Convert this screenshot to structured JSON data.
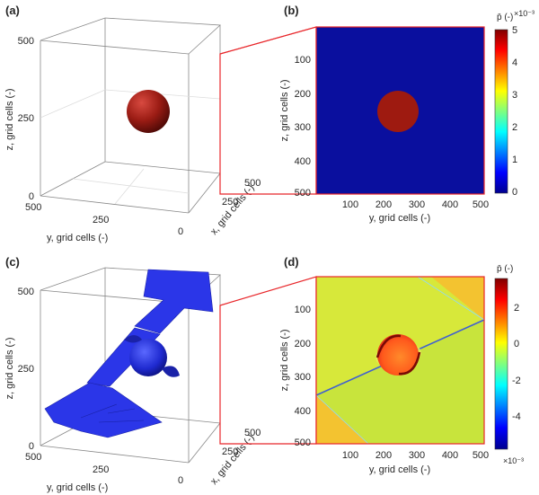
{
  "panels": {
    "a": {
      "label": "(a)",
      "z_label": "z, grid cells (-)",
      "y_label": "y, grid cells (-)",
      "x_label": "x, grid cells (-)",
      "z_ticks": [
        "0",
        "250",
        "500"
      ],
      "y_ticks": [
        "500",
        "250",
        "0"
      ],
      "x_ticks": [
        "250",
        "500"
      ]
    },
    "b": {
      "label": "(b)",
      "y_label": "z, grid cells (-)",
      "x_label": "y, grid cells (-)",
      "y_ticks": [
        "100",
        "200",
        "300",
        "400",
        "500"
      ],
      "x_ticks": [
        "100",
        "200",
        "300",
        "400",
        "500"
      ],
      "colorbar_title": "p̄ (-)",
      "colorbar_multiplier": "×10⁻³",
      "colorbar_ticks": [
        "5",
        "4",
        "3",
        "2",
        "1",
        "0"
      ]
    },
    "c": {
      "label": "(c)",
      "z_label": "z, grid cells (-)",
      "y_label": "y, grid cells (-)",
      "x_label": "x, grid cells (-)",
      "z_ticks": [
        "0",
        "250",
        "500"
      ],
      "y_ticks": [
        "500",
        "250",
        "0"
      ],
      "x_ticks": [
        "250",
        "500"
      ]
    },
    "d": {
      "label": "(d)",
      "y_label": "z, grid cells (-)",
      "x_label": "y, grid cells (-)",
      "y_ticks": [
        "100",
        "200",
        "300",
        "400",
        "500"
      ],
      "x_ticks": [
        "100",
        "200",
        "300",
        "400",
        "500"
      ],
      "colorbar_title": "p̄ (-)",
      "colorbar_multiplier": "×10⁻³",
      "colorbar_ticks": [
        "2",
        "0",
        "-2",
        "-4"
      ]
    }
  },
  "colors": {
    "zoom_lines": "#e8262a",
    "field_background_b": "#0a0f9e",
    "sphere_b": "#9e1a10",
    "isosurface_c": "#2b36e8",
    "field_background_d": "#c8e43c"
  }
}
